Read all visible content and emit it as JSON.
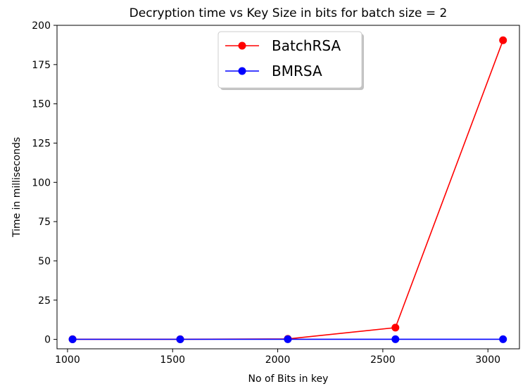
{
  "chart_data": {
    "type": "line",
    "title": "Decryption time vs Key Size in bits for batch size = 2",
    "xlabel": "No of Bits in key",
    "ylabel": "Time in milliseconds",
    "x": [
      1024,
      1536,
      2048,
      2560,
      3072
    ],
    "series": [
      {
        "name": "BatchRSA",
        "color": "#ff0000",
        "values": [
          0.1,
          0.1,
          0.3,
          7.5,
          190.5
        ]
      },
      {
        "name": "BMRSA",
        "color": "#0000ff",
        "values": [
          0.05,
          0.05,
          0.1,
          0.1,
          0.1
        ]
      }
    ],
    "xlim": [
      950,
      3150
    ],
    "ylim": [
      -6,
      200
    ],
    "xticks": [
      1000,
      1500,
      2000,
      2500,
      3000
    ],
    "yticks": [
      0,
      25,
      50,
      75,
      100,
      125,
      150,
      175,
      200
    ],
    "grid": false,
    "legend_position": "top-center"
  }
}
